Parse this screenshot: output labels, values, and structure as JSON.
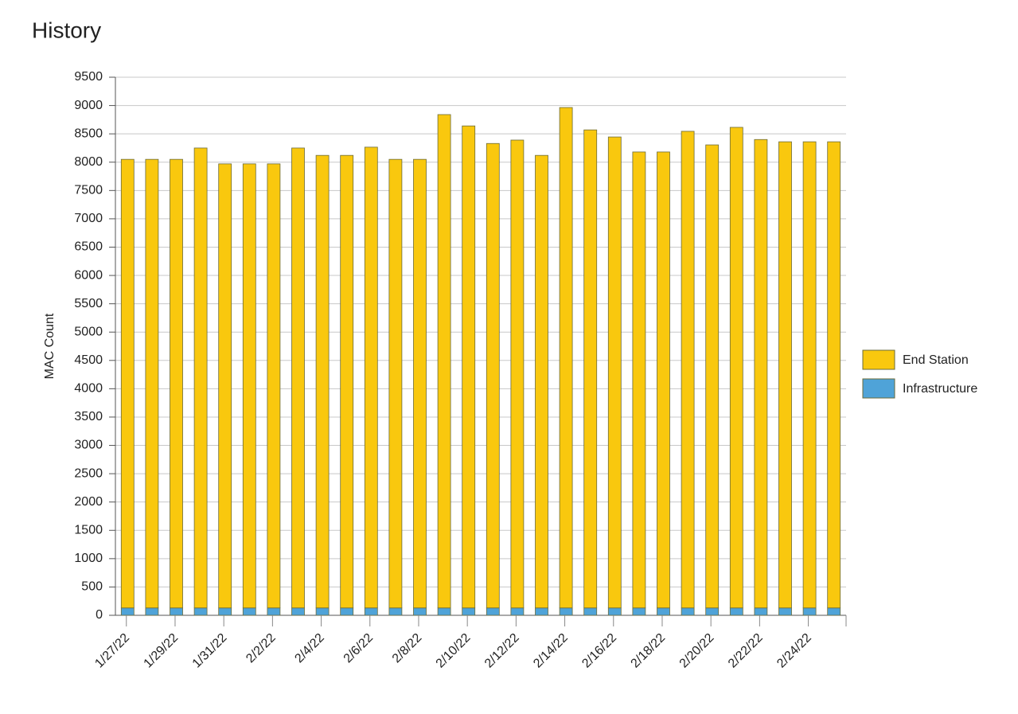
{
  "chart_data": {
    "type": "stacked_bar",
    "title": "History",
    "y_label": "MAC Count",
    "categories": [
      "1/27/22",
      null,
      "1/29/22",
      null,
      "1/31/22",
      null,
      "2/2/22",
      null,
      "2/4/22",
      null,
      "2/6/22",
      null,
      "2/8/22",
      null,
      "2/10/22",
      null,
      "2/12/22",
      null,
      "2/14/22",
      null,
      "2/16/22",
      null,
      "2/18/22",
      null,
      "2/20/22",
      null,
      "2/22/22",
      null,
      "2/24/22",
      null
    ],
    "series": [
      {
        "name": "End Station",
        "color": "#f9c80e",
        "values": [
          7920,
          7920,
          7920,
          8120,
          7840,
          7840,
          7840,
          8120,
          7990,
          7990,
          8135,
          7920,
          7920,
          8710,
          8510,
          8200,
          8260,
          7990,
          8835,
          8440,
          8315,
          8050,
          8050,
          8415,
          8175,
          8485,
          8270,
          8230,
          8230,
          8230
        ]
      },
      {
        "name": "Infrastructure",
        "color": "#4fa3d8",
        "values": [
          130,
          130,
          130,
          130,
          130,
          130,
          130,
          130,
          130,
          130,
          130,
          130,
          130,
          130,
          130,
          130,
          130,
          130,
          130,
          130,
          130,
          130,
          130,
          130,
          130,
          130,
          130,
          130,
          130,
          130
        ]
      }
    ],
    "ylim": [
      0,
      9500
    ],
    "yticks": [
      0,
      500,
      1000,
      1500,
      2000,
      2500,
      3000,
      3500,
      4000,
      4500,
      5000,
      5500,
      6000,
      6500,
      7000,
      7500,
      8000,
      8500,
      9000,
      9500
    ],
    "grid": true,
    "legend": "right"
  }
}
